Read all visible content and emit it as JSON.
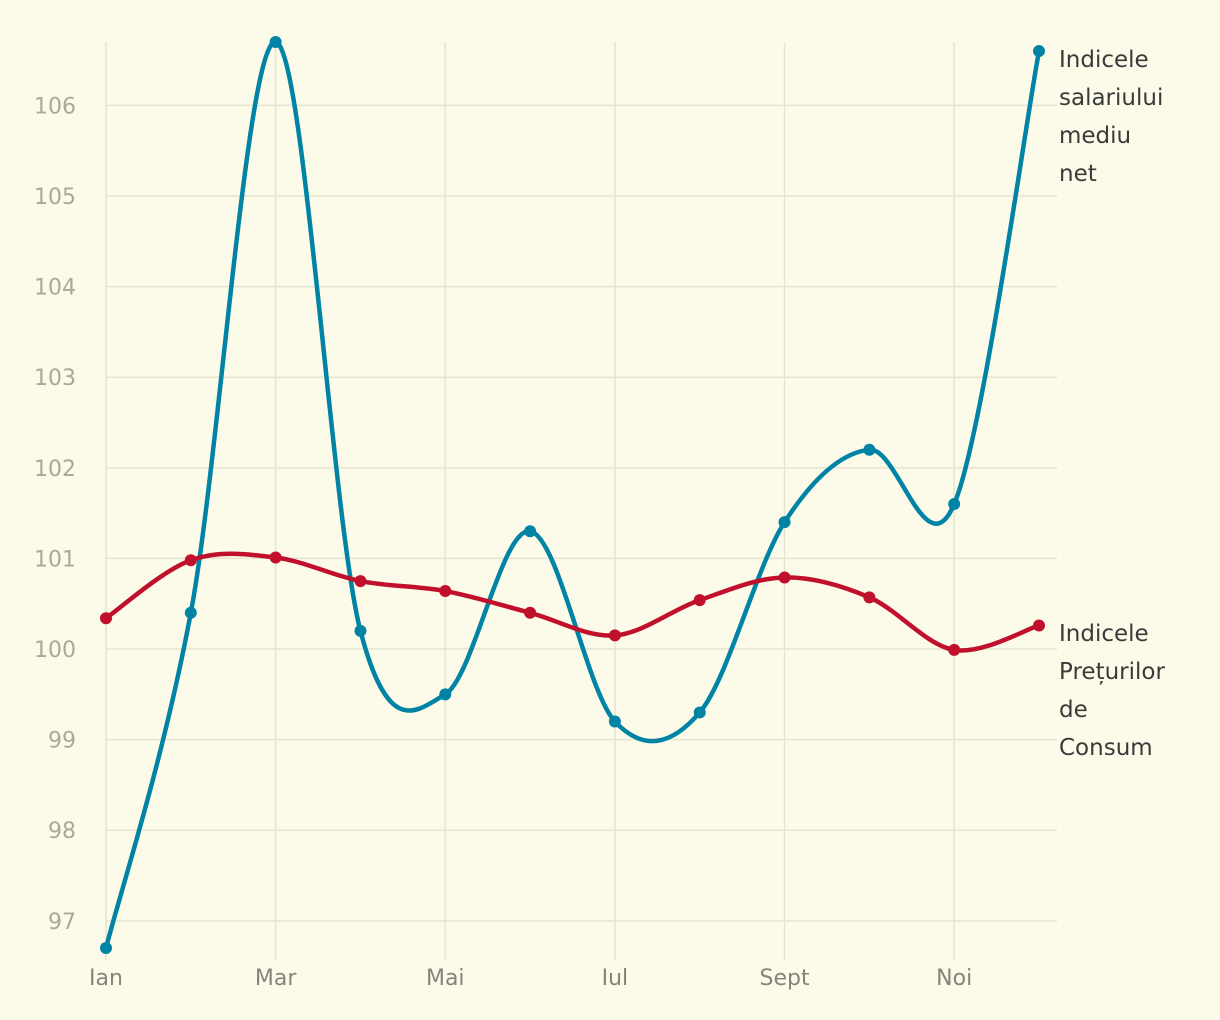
{
  "chart_data": {
    "type": "line",
    "xlabel": "",
    "ylabel": "",
    "x": [
      1,
      2,
      3,
      4,
      5,
      6,
      7,
      8,
      9,
      10,
      11,
      12
    ],
    "x_tick_labels": [
      {
        "x": 1,
        "label": "Ian"
      },
      {
        "x": 3,
        "label": "Mar"
      },
      {
        "x": 5,
        "label": "Mai"
      },
      {
        "x": 7,
        "label": "Iul"
      },
      {
        "x": 9,
        "label": "Sept"
      },
      {
        "x": 11,
        "label": "Noi"
      }
    ],
    "y_ticks": [
      97,
      98,
      99,
      100,
      101,
      102,
      103,
      104,
      105,
      106
    ],
    "ylim": [
      96.7,
      106.7
    ],
    "xlim": [
      1,
      12
    ],
    "grid": true,
    "legend": "direct labels at right end of lines",
    "series": [
      {
        "name": "Indicele salariului mediu net",
        "label_lines": [
          "Indicele",
          "salariului",
          "mediu",
          "net"
        ],
        "color": "#0083a5",
        "values": [
          96.7,
          100.4,
          106.7,
          100.2,
          99.5,
          101.3,
          99.2,
          99.3,
          101.4,
          102.2,
          101.6,
          106.6
        ]
      },
      {
        "name": "Indicele Prețurilor de Consum",
        "label_lines": [
          "Indicele",
          "Prețurilor",
          "de",
          "Consum"
        ],
        "color": "#c0102c",
        "values": [
          100.34,
          100.98,
          101.01,
          100.75,
          100.64,
          100.4,
          100.15,
          100.54,
          100.79,
          100.57,
          99.99,
          100.26
        ]
      }
    ]
  }
}
